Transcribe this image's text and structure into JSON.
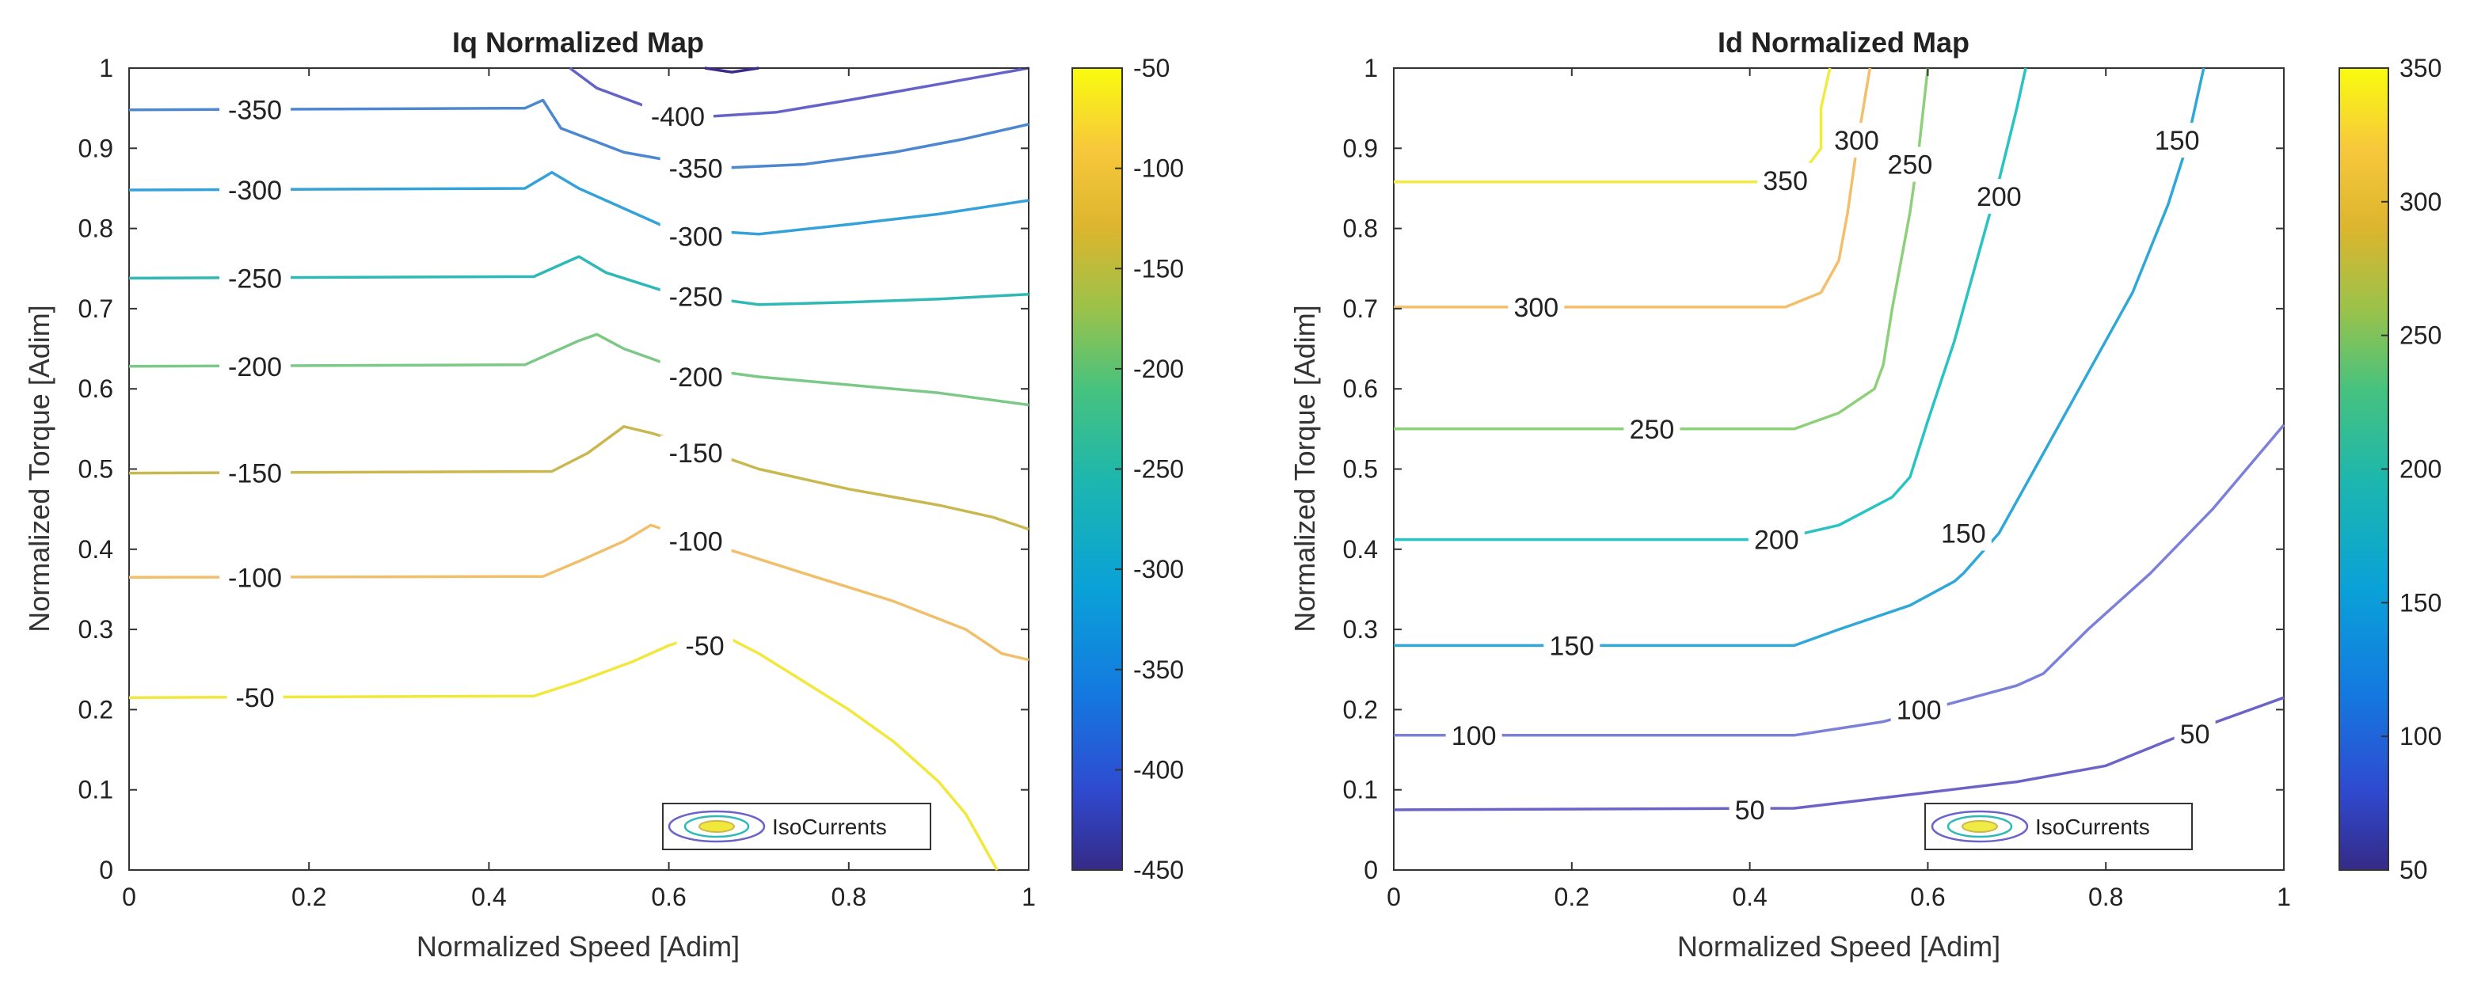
{
  "chart_data": [
    {
      "type": "contour",
      "title": "Iq Normalized Map",
      "xlabel": "Normalized Speed [Adim]",
      "ylabel": "Normalized Torque [Adim]",
      "xlim": [
        0,
        1
      ],
      "ylim": [
        0,
        1
      ],
      "xticks": [
        "0",
        "0.2",
        "0.4",
        "0.6",
        "0.8",
        "1"
      ],
      "yticks": [
        "0",
        "0.1",
        "0.2",
        "0.3",
        "0.4",
        "0.5",
        "0.6",
        "0.7",
        "0.8",
        "0.9",
        "1"
      ],
      "colorbar": {
        "range": [
          -450,
          -50
        ],
        "ticks": [
          "-450",
          "-400",
          "-350",
          "-300",
          "-250",
          "-200",
          "-150",
          "-100",
          "-50"
        ]
      },
      "legend": {
        "text": "IsoCurrents",
        "location": "bottom-right"
      },
      "contours": [
        {
          "level": -50,
          "label": "-50",
          "color": "#f2e83c",
          "points": [
            [
              0,
              0.215
            ],
            [
              0.45,
              0.217
            ],
            [
              0.5,
              0.235
            ],
            [
              0.56,
              0.26
            ],
            [
              0.6,
              0.28
            ],
            [
              0.64,
              0.295
            ],
            [
              0.66,
              0.293
            ],
            [
              0.7,
              0.27
            ],
            [
              0.75,
              0.235
            ],
            [
              0.8,
              0.2
            ],
            [
              0.85,
              0.16
            ],
            [
              0.9,
              0.11
            ],
            [
              0.93,
              0.07
            ],
            [
              0.95,
              0.03
            ],
            [
              0.965,
              0
            ]
          ],
          "label_positions": [
            [
              0.14,
              0.215
            ],
            [
              0.64,
              0.28
            ]
          ]
        },
        {
          "level": -100,
          "label": "-100",
          "color": "#f1bf6b",
          "points": [
            [
              0,
              0.365
            ],
            [
              0.46,
              0.366
            ],
            [
              0.5,
              0.385
            ],
            [
              0.55,
              0.41
            ],
            [
              0.58,
              0.43
            ],
            [
              0.62,
              0.415
            ],
            [
              0.68,
              0.395
            ],
            [
              0.75,
              0.37
            ],
            [
              0.85,
              0.335
            ],
            [
              0.93,
              0.3
            ],
            [
              0.97,
              0.27
            ],
            [
              1,
              0.262
            ]
          ],
          "label_positions": [
            [
              0.14,
              0.365
            ],
            [
              0.63,
              0.41
            ]
          ]
        },
        {
          "level": -150,
          "label": "-150",
          "color": "#c9b850",
          "points": [
            [
              0,
              0.495
            ],
            [
              0.47,
              0.497
            ],
            [
              0.51,
              0.52
            ],
            [
              0.55,
              0.553
            ],
            [
              0.58,
              0.545
            ],
            [
              0.61,
              0.535
            ],
            [
              0.7,
              0.5
            ],
            [
              0.8,
              0.475
            ],
            [
              0.9,
              0.455
            ],
            [
              0.96,
              0.44
            ],
            [
              1,
              0.425
            ]
          ],
          "label_positions": [
            [
              0.14,
              0.495
            ],
            [
              0.63,
              0.52
            ]
          ]
        },
        {
          "level": -200,
          "label": "-200",
          "color": "#7cc887",
          "points": [
            [
              0,
              0.628
            ],
            [
              0.44,
              0.63
            ],
            [
              0.5,
              0.66
            ],
            [
              0.52,
              0.668
            ],
            [
              0.55,
              0.65
            ],
            [
              0.6,
              0.63
            ],
            [
              0.7,
              0.615
            ],
            [
              0.8,
              0.605
            ],
            [
              0.9,
              0.595
            ],
            [
              1,
              0.58
            ]
          ],
          "label_positions": [
            [
              0.14,
              0.628
            ],
            [
              0.63,
              0.615
            ]
          ]
        },
        {
          "level": -250,
          "label": "-250",
          "color": "#2fb9b6",
          "points": [
            [
              0,
              0.738
            ],
            [
              0.45,
              0.74
            ],
            [
              0.49,
              0.76
            ],
            [
              0.5,
              0.765
            ],
            [
              0.53,
              0.745
            ],
            [
              0.6,
              0.72
            ],
            [
              0.7,
              0.705
            ],
            [
              0.8,
              0.708
            ],
            [
              0.9,
              0.712
            ],
            [
              1,
              0.718
            ]
          ],
          "label_positions": [
            [
              0.14,
              0.738
            ],
            [
              0.63,
              0.715
            ]
          ]
        },
        {
          "level": -300,
          "label": "-300",
          "color": "#34a2d8",
          "points": [
            [
              0,
              0.848
            ],
            [
              0.44,
              0.85
            ],
            [
              0.47,
              0.87
            ],
            [
              0.5,
              0.85
            ],
            [
              0.6,
              0.8
            ],
            [
              0.7,
              0.793
            ],
            [
              0.8,
              0.805
            ],
            [
              0.9,
              0.818
            ],
            [
              1,
              0.835
            ]
          ],
          "label_positions": [
            [
              0.14,
              0.848
            ],
            [
              0.63,
              0.79
            ]
          ]
        },
        {
          "level": -350,
          "label": "-350",
          "color": "#4c87d0",
          "points": [
            [
              0,
              0.948
            ],
            [
              0.44,
              0.95
            ],
            [
              0.46,
              0.96
            ],
            [
              0.48,
              0.925
            ],
            [
              0.55,
              0.895
            ],
            [
              0.65,
              0.875
            ],
            [
              0.75,
              0.88
            ],
            [
              0.85,
              0.895
            ],
            [
              0.93,
              0.912
            ],
            [
              1,
              0.93
            ]
          ],
          "label_positions": [
            [
              0.14,
              0.948
            ],
            [
              0.63,
              0.875
            ]
          ]
        },
        {
          "level": -400,
          "label": "-400",
          "color": "#6563c9",
          "points": [
            [
              0.49,
              1
            ],
            [
              0.52,
              0.975
            ],
            [
              0.58,
              0.95
            ],
            [
              0.65,
              0.94
            ],
            [
              0.72,
              0.945
            ],
            [
              0.8,
              0.96
            ],
            [
              0.9,
              0.98
            ],
            [
              1,
              1
            ]
          ],
          "label_positions": [
            [
              0.61,
              0.94
            ]
          ]
        },
        {
          "level": -450,
          "label": "",
          "color": "#3d2a8c",
          "points": [
            [
              0.64,
              1
            ],
            [
              0.67,
              0.995
            ],
            [
              0.7,
              1
            ]
          ],
          "label_positions": []
        }
      ]
    },
    {
      "type": "contour",
      "title": "Id Normalized Map",
      "xlabel": "Normalized Speed [Adim]",
      "ylabel": "Normalized Torque [Adim]",
      "xlim": [
        0,
        1
      ],
      "ylim": [
        0,
        1
      ],
      "xticks": [
        "0",
        "0.2",
        "0.4",
        "0.6",
        "0.8",
        "1"
      ],
      "yticks": [
        "0",
        "0.1",
        "0.2",
        "0.3",
        "0.4",
        "0.5",
        "0.6",
        "0.7",
        "0.8",
        "0.9",
        "1"
      ],
      "colorbar": {
        "range": [
          50,
          350
        ],
        "ticks": [
          "50",
          "100",
          "150",
          "200",
          "250",
          "300",
          "350"
        ]
      },
      "legend": {
        "text": "IsoCurrents",
        "location": "bottom-right"
      },
      "contours": [
        {
          "level": 50,
          "label": "50",
          "color": "#6b63c8",
          "points": [
            [
              0,
              0.075
            ],
            [
              0.45,
              0.077
            ],
            [
              0.55,
              0.09
            ],
            [
              0.7,
              0.11
            ],
            [
              0.8,
              0.13
            ],
            [
              0.9,
              0.175
            ],
            [
              1,
              0.215
            ]
          ],
          "label_positions": [
            [
              0.4,
              0.075
            ],
            [
              0.9,
              0.17
            ]
          ]
        },
        {
          "level": 100,
          "label": "100",
          "color": "#7c80d8",
          "points": [
            [
              0,
              0.168
            ],
            [
              0.45,
              0.168
            ],
            [
              0.55,
              0.185
            ],
            [
              0.65,
              0.215
            ],
            [
              0.7,
              0.23
            ],
            [
              0.73,
              0.245
            ],
            [
              0.78,
              0.3
            ],
            [
              0.85,
              0.37
            ],
            [
              0.92,
              0.45
            ],
            [
              1,
              0.555
            ]
          ],
          "label_positions": [
            [
              0.09,
              0.168
            ],
            [
              0.59,
              0.2
            ]
          ]
        },
        {
          "level": 150,
          "label": "150",
          "color": "#2fa8d8",
          "points": [
            [
              0,
              0.28
            ],
            [
              0.45,
              0.28
            ],
            [
              0.5,
              0.3
            ],
            [
              0.58,
              0.33
            ],
            [
              0.63,
              0.36
            ],
            [
              0.64,
              0.37
            ],
            [
              0.68,
              0.42
            ],
            [
              0.72,
              0.5
            ],
            [
              0.77,
              0.6
            ],
            [
              0.83,
              0.72
            ],
            [
              0.87,
              0.83
            ],
            [
              0.89,
              0.9
            ],
            [
              0.9,
              0.95
            ],
            [
              0.91,
              1
            ]
          ],
          "label_positions": [
            [
              0.2,
              0.28
            ],
            [
              0.64,
              0.42
            ],
            [
              0.88,
              0.91
            ]
          ]
        },
        {
          "level": 200,
          "label": "200",
          "color": "#29c3c3",
          "points": [
            [
              0,
              0.412
            ],
            [
              0.43,
              0.412
            ],
            [
              0.5,
              0.43
            ],
            [
              0.56,
              0.465
            ],
            [
              0.58,
              0.49
            ],
            [
              0.6,
              0.56
            ],
            [
              0.63,
              0.66
            ],
            [
              0.66,
              0.78
            ],
            [
              0.68,
              0.86
            ],
            [
              0.7,
              0.95
            ],
            [
              0.71,
              1
            ]
          ],
          "label_positions": [
            [
              0.43,
              0.412
            ],
            [
              0.68,
              0.84
            ]
          ]
        },
        {
          "level": 250,
          "label": "250",
          "color": "#8ed07a",
          "points": [
            [
              0,
              0.55
            ],
            [
              0.45,
              0.55
            ],
            [
              0.5,
              0.57
            ],
            [
              0.54,
              0.6
            ],
            [
              0.55,
              0.63
            ],
            [
              0.56,
              0.7
            ],
            [
              0.58,
              0.82
            ],
            [
              0.59,
              0.9
            ],
            [
              0.6,
              1
            ]
          ],
          "label_positions": [
            [
              0.29,
              0.55
            ],
            [
              0.58,
              0.88
            ]
          ]
        },
        {
          "level": 300,
          "label": "300",
          "color": "#f3bf6b",
          "points": [
            [
              0,
              0.702
            ],
            [
              0.44,
              0.702
            ],
            [
              0.48,
              0.72
            ],
            [
              0.5,
              0.76
            ],
            [
              0.51,
              0.82
            ],
            [
              0.52,
              0.9
            ],
            [
              0.535,
              1
            ]
          ],
          "label_positions": [
            [
              0.16,
              0.702
            ],
            [
              0.52,
              0.91
            ]
          ]
        },
        {
          "level": 350,
          "label": "350",
          "color": "#f0ea45",
          "points": [
            [
              0,
              0.858
            ],
            [
              0.42,
              0.858
            ],
            [
              0.46,
              0.87
            ],
            [
              0.48,
              0.9
            ],
            [
              0.48,
              0.95
            ],
            [
              0.49,
              1
            ]
          ],
          "label_positions": [
            [
              0.44,
              0.86
            ]
          ]
        }
      ]
    }
  ]
}
